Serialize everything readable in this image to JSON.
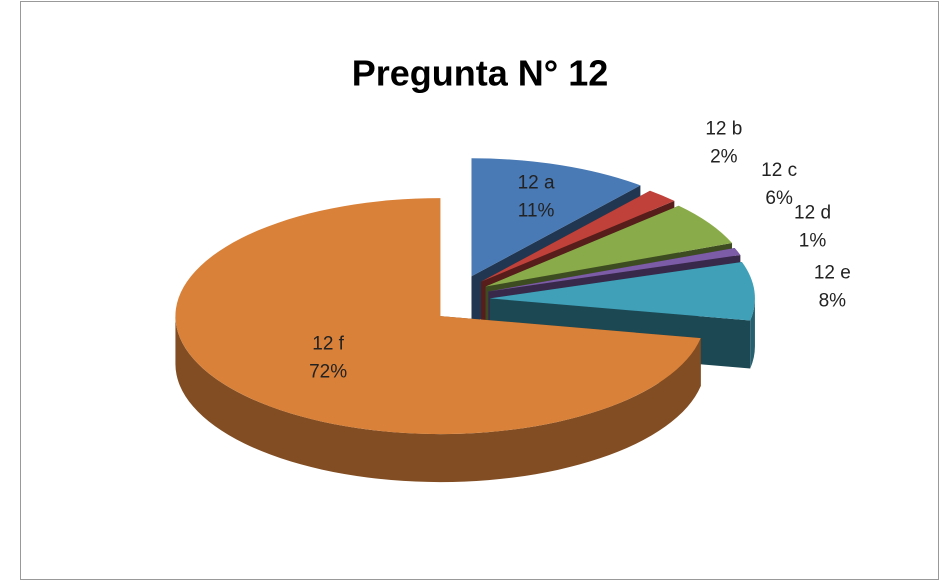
{
  "chart_data": {
    "type": "pie",
    "title": "Pregunta N° 12",
    "categories": [
      "12 a",
      "12 b",
      "12 c",
      "12 d",
      "12 e",
      "12 f"
    ],
    "values": [
      11,
      2,
      6,
      1,
      8,
      72
    ],
    "value_labels": [
      "11%",
      "2%",
      "6%",
      "1%",
      "8%",
      "72%"
    ],
    "colors": [
      "#4a7ab5",
      "#c0413a",
      "#8aab4a",
      "#7c5ca6",
      "#3fa0b8",
      "#d98139"
    ]
  }
}
